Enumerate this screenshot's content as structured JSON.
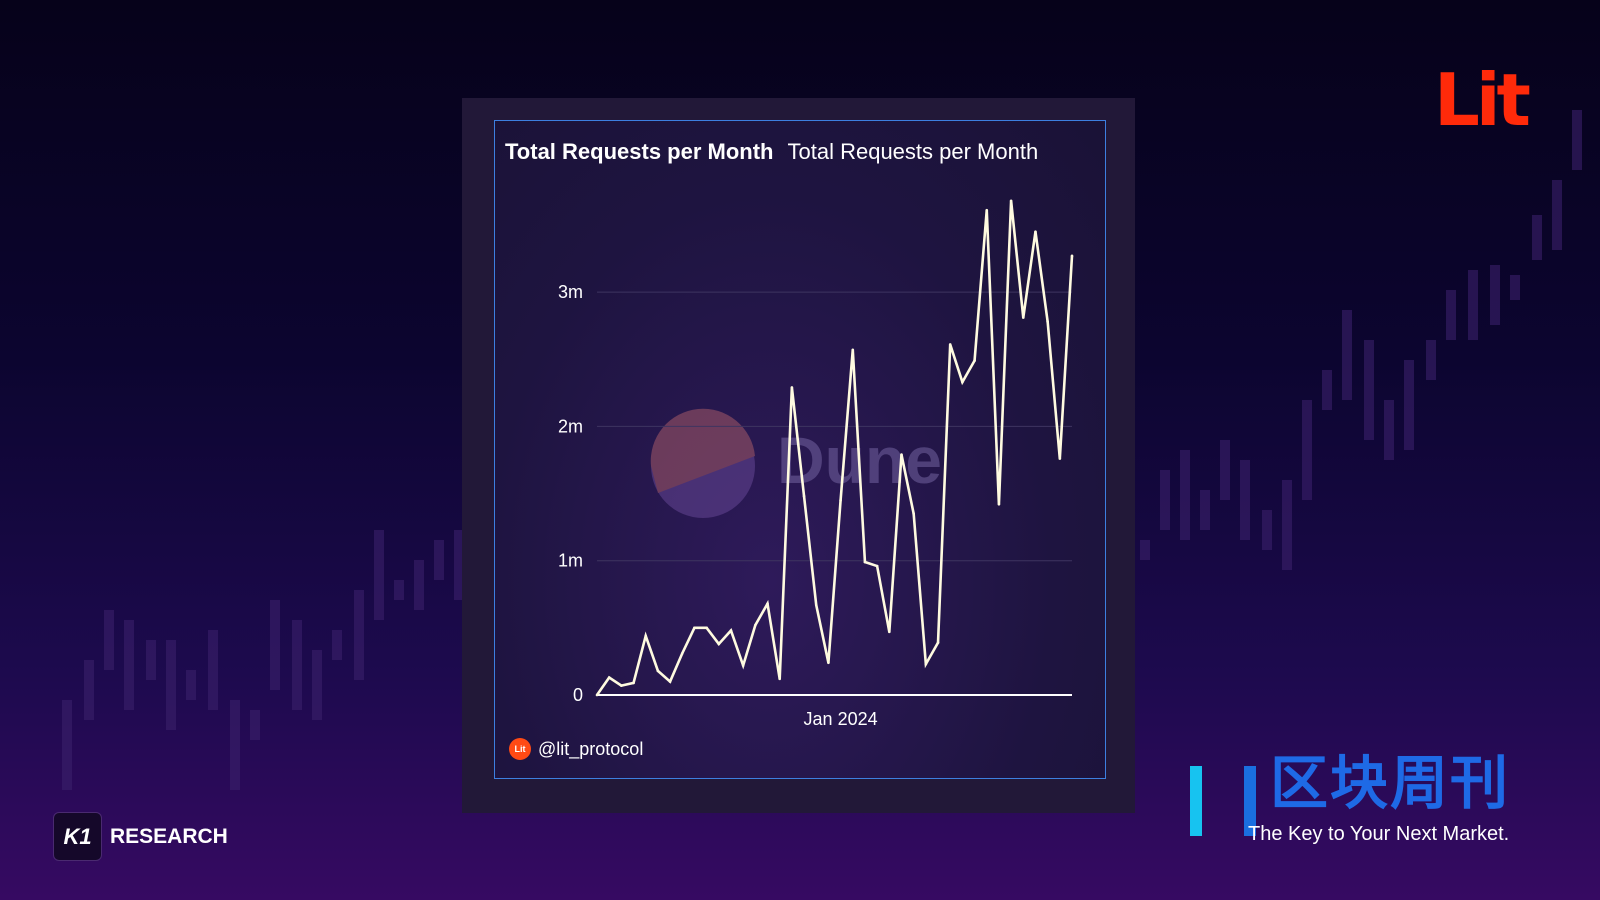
{
  "logos": {
    "lit": "Lit",
    "k1_mark": "K1",
    "k1_text": "RESEARCH",
    "qkzk_cn": "区块周刊",
    "qkzk_tagline": "The Key to Your Next Market."
  },
  "chart_data": {
    "type": "line",
    "title": "Total Requests per Month",
    "subtitle": "Total Requests per Month",
    "watermark": "Dune",
    "attribution": "@lit_protocol",
    "attribution_badge": "Lit",
    "xlabel": "",
    "ylabel": "",
    "x_tick_labels": [
      {
        "index": 20,
        "label": "Jan 2024"
      }
    ],
    "y_tick_labels": [
      "0",
      "1m",
      "2m",
      "3m"
    ],
    "y_ticks": [
      0,
      1000000,
      2000000,
      3000000
    ],
    "ylim": [
      0,
      3800000
    ],
    "grid": true,
    "line_color": "#fffbe0",
    "series": [
      {
        "name": "Total Requests",
        "values": [
          0,
          130000,
          70000,
          90000,
          440000,
          180000,
          100000,
          310000,
          500000,
          500000,
          380000,
          480000,
          220000,
          520000,
          680000,
          120000,
          2290000,
          1480000,
          670000,
          240000,
          1450000,
          2570000,
          990000,
          960000,
          470000,
          1790000,
          1350000,
          230000,
          390000,
          2610000,
          2330000,
          2490000,
          3610000,
          1420000,
          3680000,
          2810000,
          3450000,
          2780000,
          1760000,
          3270000
        ]
      }
    ]
  }
}
